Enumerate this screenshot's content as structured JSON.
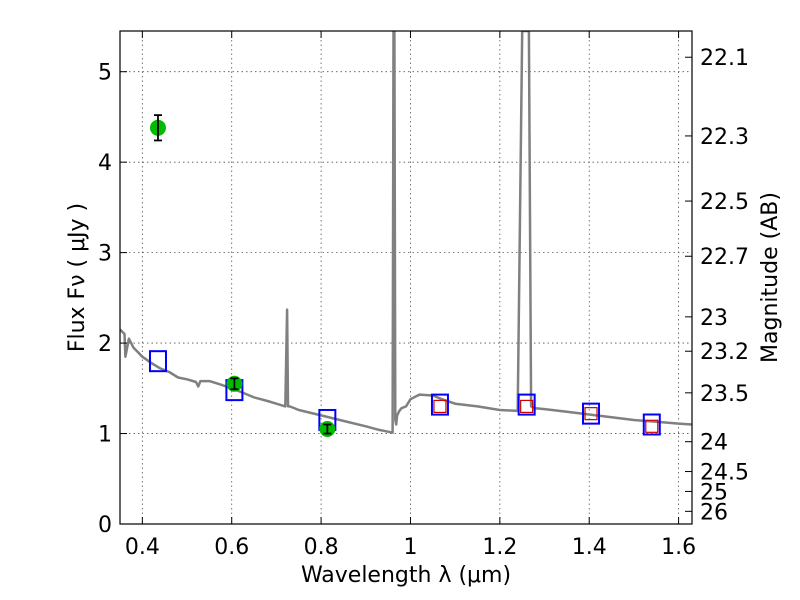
{
  "chart_data": {
    "type": "scatter",
    "title": "",
    "xlabel": "Wavelength  λ (μm)",
    "ylabel": "Flux  Fν  ( μJy )",
    "ylabel_right": "Magnitude (AB)",
    "xlim": [
      0.35,
      1.63
    ],
    "ylim": [
      0,
      5.45
    ],
    "grid": true,
    "x_ticks": [
      0.4,
      0.6,
      0.8,
      1.0,
      1.2,
      1.4,
      1.6
    ],
    "x_tick_labels": [
      "0.4",
      "0.6",
      "0.8",
      "1",
      "1.2",
      "1.4",
      "1.6"
    ],
    "y_ticks": [
      0,
      1,
      2,
      3,
      4,
      5
    ],
    "y_tick_labels": [
      "0",
      "1",
      "2",
      "3",
      "4",
      "5"
    ],
    "right_ticks": [
      {
        "label": "22.1",
        "flux": 5.16
      },
      {
        "label": "22.3",
        "flux": 4.29
      },
      {
        "label": "22.5",
        "flux": 3.57
      },
      {
        "label": "22.7",
        "flux": 2.96
      },
      {
        "label": "23",
        "flux": 2.29
      },
      {
        "label": "23.2",
        "flux": 1.91
      },
      {
        "label": "23.5",
        "flux": 1.45
      },
      {
        "label": "24",
        "flux": 0.91
      },
      {
        "label": "24.5",
        "flux": 0.58
      },
      {
        "label": "25",
        "flux": 0.36
      },
      {
        "label": "26",
        "flux": 0.14
      }
    ],
    "series": [
      {
        "name": "model_sed",
        "kind": "line",
        "color": "#808080",
        "x": [
          0.35,
          0.36,
          0.362,
          0.37,
          0.38,
          0.39,
          0.4,
          0.42,
          0.44,
          0.46,
          0.48,
          0.5,
          0.52,
          0.525,
          0.53,
          0.55,
          0.57,
          0.6,
          0.62,
          0.65,
          0.68,
          0.7,
          0.72,
          0.724,
          0.726,
          0.73,
          0.75,
          0.8,
          0.85,
          0.9,
          0.93,
          0.95,
          0.96,
          0.962,
          0.964,
          0.966,
          0.968,
          0.97,
          0.975,
          0.98,
          0.99,
          1.0,
          1.02,
          1.05,
          1.07,
          1.1,
          1.15,
          1.2,
          1.24,
          1.25,
          1.26,
          1.265,
          1.27,
          1.28,
          1.3,
          1.35,
          1.4,
          1.45,
          1.5,
          1.55,
          1.6,
          1.63
        ],
        "y": [
          2.15,
          2.1,
          1.85,
          2.05,
          1.95,
          1.9,
          1.85,
          1.78,
          1.72,
          1.68,
          1.62,
          1.6,
          1.57,
          1.52,
          1.58,
          1.58,
          1.55,
          1.5,
          1.46,
          1.4,
          1.36,
          1.33,
          1.3,
          2.37,
          1.3,
          1.3,
          1.26,
          1.2,
          1.14,
          1.08,
          1.04,
          1.02,
          1.01,
          5.45,
          5.45,
          1.15,
          1.1,
          1.2,
          1.25,
          1.28,
          1.3,
          1.38,
          1.43,
          1.42,
          1.38,
          1.33,
          1.3,
          1.26,
          1.25,
          5.45,
          5.45,
          5.45,
          1.3,
          1.28,
          1.27,
          1.24,
          1.21,
          1.18,
          1.15,
          1.13,
          1.11,
          1.1
        ]
      },
      {
        "name": "model_photometry",
        "kind": "open-square-large",
        "color": "#0000ff",
        "x": [
          0.435,
          0.606,
          0.814,
          1.066,
          1.26,
          1.404,
          1.54
        ],
        "y": [
          1.8,
          1.48,
          1.15,
          1.32,
          1.32,
          1.22,
          1.1
        ]
      },
      {
        "name": "observed_upper_limits",
        "kind": "open-square-small",
        "color": "#cc0000",
        "x": [
          1.066,
          1.26,
          1.404,
          1.54
        ],
        "y": [
          1.3,
          1.3,
          1.22,
          1.08
        ]
      },
      {
        "name": "observed_detections",
        "kind": "filled-circle-errorbar",
        "color": "#00bb00",
        "x": [
          0.435,
          0.606,
          0.814
        ],
        "y": [
          4.38,
          1.55,
          1.05
        ],
        "yerr": [
          0.14,
          0.06,
          0.05
        ]
      }
    ]
  }
}
